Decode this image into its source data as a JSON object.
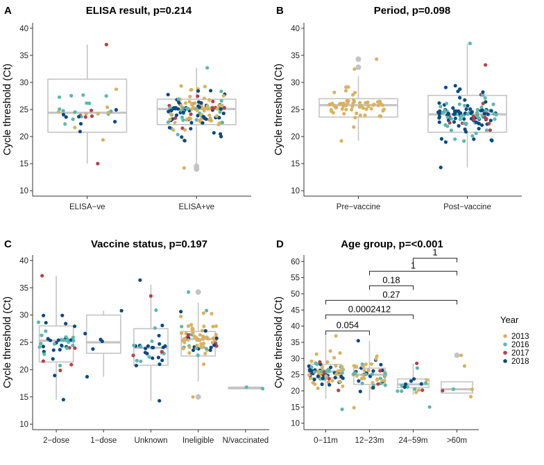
{
  "chart_data": [
    {
      "type": "box",
      "letter": "A",
      "title": "ELISA result, p=0.214",
      "ylabel": "Cycle threshold (Ct)",
      "xlabel": "",
      "ylim": [
        9,
        41
      ],
      "yticks": [
        10,
        15,
        20,
        25,
        30,
        35,
        40
      ],
      "categories": [
        "ELISA−ve",
        "ELISA+ve"
      ],
      "boxes": [
        {
          "category": "ELISA−ve",
          "lower_whisker": 15.0,
          "q1": 20.8,
          "median": 24.4,
          "q3": 30.6,
          "upper_whisker": 37.0,
          "outliers": []
        },
        {
          "category": "ELISA+ve",
          "lower_whisker": 14.5,
          "q1": 22.2,
          "median": 25.1,
          "q3": 26.9,
          "upper_whisker": 32.7,
          "outliers": [
            14.0,
            14.5
          ]
        }
      ],
      "points": [
        {
          "cat": 0,
          "n": 36,
          "min": 15.0,
          "max": 37.0,
          "mix": {
            "2013": 0.35,
            "2016": 0.3,
            "2017": 0.15,
            "2018": 0.2
          }
        },
        {
          "cat": 1,
          "n": 150,
          "min": 14.2,
          "max": 32.7,
          "mix": {
            "2013": 0.45,
            "2016": 0.2,
            "2017": 0.07,
            "2018": 0.28
          }
        }
      ],
      "comparisons": []
    },
    {
      "type": "box",
      "letter": "B",
      "title": "Period, p=0.098",
      "ylabel": "Cycle threshold (Ct)",
      "xlabel": "",
      "ylim": [
        9,
        41
      ],
      "yticks": [
        10,
        15,
        20,
        25,
        30,
        35,
        40
      ],
      "categories": [
        "Pre−vaccine",
        "Post−vaccine"
      ],
      "boxes": [
        {
          "category": "Pre−vaccine",
          "lower_whisker": 19.2,
          "q1": 23.6,
          "median": 25.8,
          "q3": 27.0,
          "upper_whisker": 31.2,
          "outliers": [
            32.8,
            34.3
          ]
        },
        {
          "category": "Post−vaccine",
          "lower_whisker": 14.3,
          "q1": 20.8,
          "median": 24.1,
          "q3": 27.6,
          "upper_whisker": 37.2,
          "outliers": []
        }
      ],
      "points": [
        {
          "cat": 0,
          "n": 60,
          "min": 19.2,
          "max": 34.3,
          "mix": {
            "2013": 1.0
          }
        },
        {
          "cat": 1,
          "n": 130,
          "min": 14.3,
          "max": 37.2,
          "mix": {
            "2016": 0.35,
            "2017": 0.12,
            "2018": 0.53
          }
        }
      ],
      "comparisons": []
    },
    {
      "type": "box",
      "letter": "C",
      "title": "Vaccine status, p=0.197",
      "ylabel": "Cycle threshold (Ct)",
      "xlabel": "",
      "ylim": [
        9,
        41
      ],
      "yticks": [
        10,
        15,
        20,
        25,
        30,
        35,
        40
      ],
      "categories": [
        "2−dose",
        "1−dose",
        "Unknown",
        "Ineligible",
        "N/vaccinated"
      ],
      "boxes": [
        {
          "category": "2−dose",
          "lower_whisker": 14.5,
          "q1": 21.4,
          "median": 25.3,
          "q3": 28.0,
          "upper_whisker": 37.2,
          "outliers": []
        },
        {
          "category": "1−dose",
          "lower_whisker": 18.7,
          "q1": 23.0,
          "median": 25.0,
          "q3": 30.0,
          "upper_whisker": 30.8,
          "outliers": []
        },
        {
          "category": "Unknown",
          "lower_whisker": 14.3,
          "q1": 20.8,
          "median": 24.0,
          "q3": 27.5,
          "upper_whisker": 35.6,
          "outliers": []
        },
        {
          "category": "Ineligible",
          "lower_whisker": 17.8,
          "q1": 22.5,
          "median": 25.6,
          "q3": 27.0,
          "upper_whisker": 32.3,
          "outliers": [
            15.0,
            34.2
          ]
        },
        {
          "category": "N/vaccinated",
          "lower_whisker": 16.5,
          "q1": 16.5,
          "median": 16.6,
          "q3": 16.8,
          "upper_whisker": 16.8,
          "outliers": []
        }
      ],
      "points": [
        {
          "cat": 0,
          "n": 48,
          "min": 14.5,
          "max": 37.2,
          "mix": {
            "2016": 0.42,
            "2017": 0.13,
            "2018": 0.45
          }
        },
        {
          "cat": 1,
          "n": 6,
          "min": 18.7,
          "max": 30.8,
          "mix": {
            "2018": 1.0
          }
        },
        {
          "cat": 2,
          "n": 34,
          "min": 14.3,
          "max": 36.4,
          "mix": {
            "2016": 0.45,
            "2017": 0.12,
            "2018": 0.43
          }
        },
        {
          "cat": 3,
          "n": 80,
          "min": 15.0,
          "max": 34.2,
          "mix": {
            "2013": 0.72,
            "2016": 0.15,
            "2017": 0.04,
            "2018": 0.09
          }
        },
        {
          "cat": 4,
          "n": 2,
          "min": 16.5,
          "max": 16.8,
          "mix": {
            "2016": 1.0
          }
        }
      ],
      "comparisons": []
    },
    {
      "type": "box",
      "letter": "D",
      "title": "Age group, p=<0.001",
      "ylabel": "Cycle threshold (Ct)",
      "xlabel": "",
      "ylim": [
        8,
        62
      ],
      "yticks": [
        10,
        15,
        20,
        25,
        30,
        35,
        40,
        45,
        50,
        55,
        60
      ],
      "categories": [
        "0−11m",
        "12−23m",
        "24−59m",
        ">60m"
      ],
      "boxes": [
        {
          "category": "0−11m",
          "lower_whisker": 17.5,
          "q1": 24.0,
          "median": 26.0,
          "q3": 28.2,
          "upper_whisker": 37.0,
          "outliers": []
        },
        {
          "category": "12−23m",
          "lower_whisker": 17.0,
          "q1": 22.0,
          "median": 25.0,
          "q3": 27.0,
          "upper_whisker": 35.5,
          "outliers": []
        },
        {
          "category": "24−59m",
          "lower_whisker": 18.8,
          "q1": 21.0,
          "median": 22.0,
          "q3": 23.7,
          "upper_whisker": 28.5,
          "outliers": []
        },
        {
          "category": ">60m",
          "lower_whisker": 19.3,
          "q1": 19.3,
          "median": 20.5,
          "q3": 22.8,
          "upper_whisker": 22.8,
          "outliers": [
            31.0
          ]
        }
      ],
      "points": [
        {
          "cat": 0,
          "n": 90,
          "min": 14.3,
          "max": 37.0,
          "mix": {
            "2013": 0.5,
            "2016": 0.2,
            "2017": 0.08,
            "2018": 0.22
          }
        },
        {
          "cat": 1,
          "n": 55,
          "min": 14.8,
          "max": 35.5,
          "mix": {
            "2013": 0.4,
            "2016": 0.25,
            "2017": 0.07,
            "2018": 0.28
          }
        },
        {
          "cat": 2,
          "n": 20,
          "min": 15.0,
          "max": 28.5,
          "mix": {
            "2013": 0.3,
            "2016": 0.45,
            "2017": 0.1,
            "2018": 0.15
          }
        },
        {
          "cat": 3,
          "n": 6,
          "min": 18.2,
          "max": 31.0,
          "mix": {
            "2013": 0.4,
            "2016": 0.3,
            "2017": 0.15,
            "2018": 0.15
          }
        }
      ],
      "comparisons": [
        {
          "from": 0,
          "to": 1,
          "y": 38.5,
          "label": "0.054"
        },
        {
          "from": 0,
          "to": 2,
          "y": 43.5,
          "label": "0.0002412"
        },
        {
          "from": 0,
          "to": 3,
          "y": 48.0,
          "label": "0.27"
        },
        {
          "from": 1,
          "to": 2,
          "y": 52.5,
          "label": "0.18"
        },
        {
          "from": 1,
          "to": 3,
          "y": 57.0,
          "label": "1"
        },
        {
          "from": 2,
          "to": 3,
          "y": 61.0,
          "label": "1"
        }
      ]
    }
  ],
  "legend": {
    "title": "Year",
    "entries": [
      {
        "label": "2013",
        "color": "#d8b262"
      },
      {
        "label": "2016",
        "color": "#5cb8ad"
      },
      {
        "label": "2017",
        "color": "#b8404a"
      },
      {
        "label": "2018",
        "color": "#0b4a82"
      }
    ]
  }
}
